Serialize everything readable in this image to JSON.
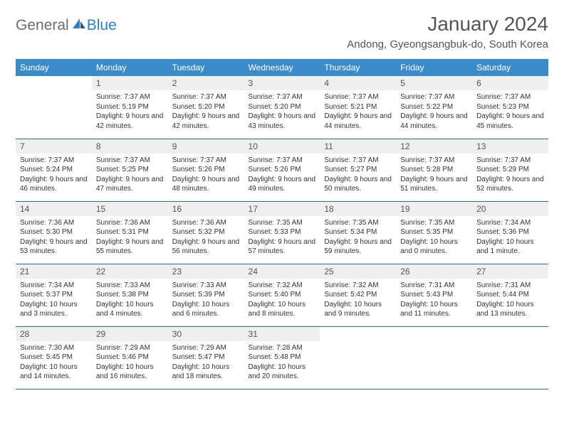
{
  "brand": {
    "part1": "General",
    "part2": "Blue"
  },
  "title": "January 2024",
  "location": "Andong, Gyeongsangbuk-do, South Korea",
  "colors": {
    "header_bg": "#3b8bc9",
    "header_text": "#ffffff",
    "daynum_bg": "#efefef",
    "row_border": "#2e6fa4",
    "title_color": "#555555",
    "body_text": "#333333",
    "logo_gray": "#6b6b6b",
    "logo_blue": "#2f7fc0"
  },
  "day_headers": [
    "Sunday",
    "Monday",
    "Tuesday",
    "Wednesday",
    "Thursday",
    "Friday",
    "Saturday"
  ],
  "weeks": [
    [
      null,
      {
        "n": "1",
        "sr": "7:37 AM",
        "ss": "5:19 PM",
        "dl": "9 hours and 42 minutes."
      },
      {
        "n": "2",
        "sr": "7:37 AM",
        "ss": "5:20 PM",
        "dl": "9 hours and 42 minutes."
      },
      {
        "n": "3",
        "sr": "7:37 AM",
        "ss": "5:20 PM",
        "dl": "9 hours and 43 minutes."
      },
      {
        "n": "4",
        "sr": "7:37 AM",
        "ss": "5:21 PM",
        "dl": "9 hours and 44 minutes."
      },
      {
        "n": "5",
        "sr": "7:37 AM",
        "ss": "5:22 PM",
        "dl": "9 hours and 44 minutes."
      },
      {
        "n": "6",
        "sr": "7:37 AM",
        "ss": "5:23 PM",
        "dl": "9 hours and 45 minutes."
      }
    ],
    [
      {
        "n": "7",
        "sr": "7:37 AM",
        "ss": "5:24 PM",
        "dl": "9 hours and 46 minutes."
      },
      {
        "n": "8",
        "sr": "7:37 AM",
        "ss": "5:25 PM",
        "dl": "9 hours and 47 minutes."
      },
      {
        "n": "9",
        "sr": "7:37 AM",
        "ss": "5:26 PM",
        "dl": "9 hours and 48 minutes."
      },
      {
        "n": "10",
        "sr": "7:37 AM",
        "ss": "5:26 PM",
        "dl": "9 hours and 49 minutes."
      },
      {
        "n": "11",
        "sr": "7:37 AM",
        "ss": "5:27 PM",
        "dl": "9 hours and 50 minutes."
      },
      {
        "n": "12",
        "sr": "7:37 AM",
        "ss": "5:28 PM",
        "dl": "9 hours and 51 minutes."
      },
      {
        "n": "13",
        "sr": "7:37 AM",
        "ss": "5:29 PM",
        "dl": "9 hours and 52 minutes."
      }
    ],
    [
      {
        "n": "14",
        "sr": "7:36 AM",
        "ss": "5:30 PM",
        "dl": "9 hours and 53 minutes."
      },
      {
        "n": "15",
        "sr": "7:36 AM",
        "ss": "5:31 PM",
        "dl": "9 hours and 55 minutes."
      },
      {
        "n": "16",
        "sr": "7:36 AM",
        "ss": "5:32 PM",
        "dl": "9 hours and 56 minutes."
      },
      {
        "n": "17",
        "sr": "7:35 AM",
        "ss": "5:33 PM",
        "dl": "9 hours and 57 minutes."
      },
      {
        "n": "18",
        "sr": "7:35 AM",
        "ss": "5:34 PM",
        "dl": "9 hours and 59 minutes."
      },
      {
        "n": "19",
        "sr": "7:35 AM",
        "ss": "5:35 PM",
        "dl": "10 hours and 0 minutes."
      },
      {
        "n": "20",
        "sr": "7:34 AM",
        "ss": "5:36 PM",
        "dl": "10 hours and 1 minute."
      }
    ],
    [
      {
        "n": "21",
        "sr": "7:34 AM",
        "ss": "5:37 PM",
        "dl": "10 hours and 3 minutes."
      },
      {
        "n": "22",
        "sr": "7:33 AM",
        "ss": "5:38 PM",
        "dl": "10 hours and 4 minutes."
      },
      {
        "n": "23",
        "sr": "7:33 AM",
        "ss": "5:39 PM",
        "dl": "10 hours and 6 minutes."
      },
      {
        "n": "24",
        "sr": "7:32 AM",
        "ss": "5:40 PM",
        "dl": "10 hours and 8 minutes."
      },
      {
        "n": "25",
        "sr": "7:32 AM",
        "ss": "5:42 PM",
        "dl": "10 hours and 9 minutes."
      },
      {
        "n": "26",
        "sr": "7:31 AM",
        "ss": "5:43 PM",
        "dl": "10 hours and 11 minutes."
      },
      {
        "n": "27",
        "sr": "7:31 AM",
        "ss": "5:44 PM",
        "dl": "10 hours and 13 minutes."
      }
    ],
    [
      {
        "n": "28",
        "sr": "7:30 AM",
        "ss": "5:45 PM",
        "dl": "10 hours and 14 minutes."
      },
      {
        "n": "29",
        "sr": "7:29 AM",
        "ss": "5:46 PM",
        "dl": "10 hours and 16 minutes."
      },
      {
        "n": "30",
        "sr": "7:29 AM",
        "ss": "5:47 PM",
        "dl": "10 hours and 18 minutes."
      },
      {
        "n": "31",
        "sr": "7:28 AM",
        "ss": "5:48 PM",
        "dl": "10 hours and 20 minutes."
      },
      null,
      null,
      null
    ]
  ],
  "labels": {
    "sunrise": "Sunrise:",
    "sunset": "Sunset:",
    "daylight": "Daylight:"
  }
}
